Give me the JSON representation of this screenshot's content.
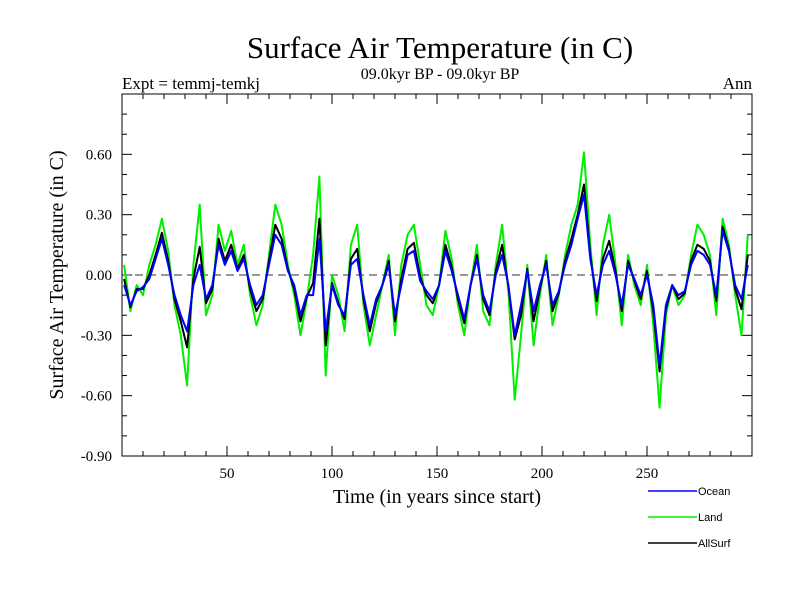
{
  "chart_data": {
    "type": "line",
    "title": "Surface Air Temperature (in C)",
    "subtitle": "09.0kyr BP - 09.0kyr BP",
    "left_note": "Expt = temmj-temkj",
    "right_note": "Ann",
    "xlabel": "Time (in years since start)",
    "ylabel": "Surface Air Temperature (in C)",
    "xlim": [
      0,
      300
    ],
    "ylim": [
      -0.9,
      0.9
    ],
    "xticks": [
      50,
      100,
      150,
      200,
      250
    ],
    "xtick_labels": [
      "50",
      "100",
      "150",
      "200",
      "250"
    ],
    "x_minor_step": 10,
    "yticks": [
      0.6,
      0.3,
      0.0,
      -0.3,
      -0.6,
      -0.9
    ],
    "ytick_labels": [
      "0.60",
      "0.30",
      "0.00",
      "-0.30",
      "-0.60",
      "-0.90"
    ],
    "y_minor_step": 0.1,
    "zero_line": "dashed",
    "legend_position": "bottom-right",
    "x_start": 1,
    "x_step": 3,
    "series": [
      {
        "name": "Land",
        "color": "#00ee00",
        "values": [
          0.05,
          -0.18,
          -0.05,
          -0.1,
          0.05,
          0.15,
          0.28,
          0.12,
          -0.15,
          -0.3,
          -0.55,
          0.05,
          0.35,
          -0.2,
          -0.1,
          0.25,
          0.12,
          0.22,
          0.05,
          0.15,
          -0.1,
          -0.25,
          -0.15,
          0.1,
          0.35,
          0.25,
          0.05,
          -0.1,
          -0.3,
          -0.12,
          0.1,
          0.49,
          -0.5,
          0.0,
          -0.1,
          -0.28,
          0.15,
          0.25,
          -0.15,
          -0.35,
          -0.2,
          -0.05,
          0.1,
          -0.3,
          0.05,
          0.2,
          0.25,
          0.05,
          -0.15,
          -0.2,
          -0.05,
          0.22,
          0.08,
          -0.15,
          -0.3,
          -0.05,
          0.15,
          -0.18,
          -0.25,
          0.05,
          0.25,
          -0.08,
          -0.62,
          -0.3,
          0.05,
          -0.35,
          -0.1,
          0.1,
          -0.25,
          -0.1,
          0.1,
          0.25,
          0.35,
          0.61,
          0.15,
          -0.2,
          0.15,
          0.3,
          0.05,
          -0.25,
          0.1,
          -0.05,
          -0.15,
          0.05,
          -0.25,
          -0.66,
          -0.2,
          -0.05,
          -0.15,
          -0.1,
          0.1,
          0.25,
          0.2,
          0.1,
          -0.2,
          0.28,
          0.15,
          -0.1,
          -0.3,
          0.2
        ]
      },
      {
        "name": "AllSurf",
        "color": "#000000",
        "values": [
          -0.02,
          -0.16,
          -0.07,
          -0.07,
          0.0,
          0.1,
          0.21,
          0.07,
          -0.12,
          -0.23,
          -0.36,
          -0.02,
          0.14,
          -0.14,
          -0.07,
          0.18,
          0.07,
          0.15,
          0.03,
          0.1,
          -0.07,
          -0.18,
          -0.12,
          0.07,
          0.25,
          0.18,
          0.03,
          -0.07,
          -0.23,
          -0.11,
          -0.04,
          0.28,
          -0.35,
          -0.04,
          -0.14,
          -0.22,
          0.08,
          0.13,
          -0.12,
          -0.28,
          -0.14,
          -0.05,
          0.07,
          -0.23,
          -0.02,
          0.13,
          0.16,
          -0.01,
          -0.1,
          -0.14,
          -0.05,
          0.15,
          0.04,
          -0.12,
          -0.24,
          -0.05,
          0.1,
          -0.12,
          -0.2,
          0.02,
          0.15,
          -0.06,
          -0.32,
          -0.2,
          0.03,
          -0.23,
          -0.07,
          0.07,
          -0.18,
          -0.09,
          0.07,
          0.18,
          0.3,
          0.45,
          0.1,
          -0.13,
          0.08,
          0.17,
          0.02,
          -0.18,
          0.07,
          -0.03,
          -0.12,
          0.02,
          -0.18,
          -0.48,
          -0.17,
          -0.05,
          -0.12,
          -0.09,
          0.07,
          0.15,
          0.13,
          0.07,
          -0.13,
          0.24,
          0.13,
          -0.07,
          -0.17,
          0.1
        ]
      },
      {
        "name": "Ocean",
        "color": "#0000ff",
        "values": [
          -0.05,
          -0.15,
          -0.08,
          -0.06,
          -0.02,
          0.08,
          0.18,
          0.05,
          -0.1,
          -0.2,
          -0.28,
          -0.05,
          0.05,
          -0.12,
          -0.05,
          0.15,
          0.05,
          0.12,
          0.02,
          0.08,
          -0.05,
          -0.15,
          -0.1,
          0.05,
          0.2,
          0.15,
          0.02,
          -0.05,
          -0.2,
          -0.1,
          -0.1,
          0.18,
          -0.28,
          -0.05,
          -0.15,
          -0.2,
          0.05,
          0.08,
          -0.1,
          -0.25,
          -0.12,
          -0.05,
          0.05,
          -0.2,
          -0.05,
          0.1,
          0.12,
          -0.03,
          -0.08,
          -0.12,
          -0.05,
          0.12,
          0.02,
          -0.1,
          -0.22,
          -0.05,
          0.08,
          -0.1,
          -0.18,
          0.0,
          0.1,
          -0.05,
          -0.3,
          -0.15,
          0.02,
          -0.18,
          -0.05,
          0.05,
          -0.15,
          -0.08,
          0.05,
          0.15,
          0.28,
          0.4,
          0.08,
          -0.1,
          0.05,
          0.12,
          0.0,
          -0.15,
          0.05,
          -0.02,
          -0.1,
          0.0,
          -0.15,
          -0.45,
          -0.15,
          -0.05,
          -0.1,
          -0.08,
          0.05,
          0.12,
          0.1,
          0.05,
          -0.1,
          0.22,
          0.12,
          -0.05,
          -0.12,
          0.05
        ]
      }
    ],
    "legend": [
      {
        "label": "Ocean",
        "color": "#0000ff"
      },
      {
        "label": "Land",
        "color": "#00ee00"
      },
      {
        "label": "AllSurf",
        "color": "#000000"
      }
    ]
  }
}
